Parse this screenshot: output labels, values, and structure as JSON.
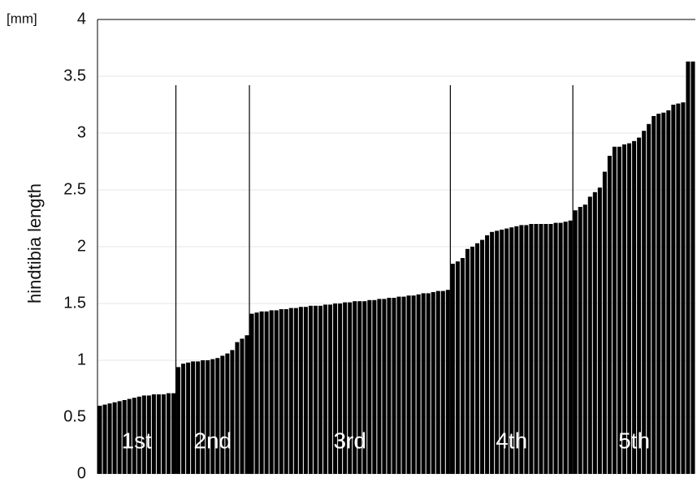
{
  "chart_data": {
    "type": "bar",
    "y_label": "hindtibia length",
    "y_unit": "[mm]",
    "ylim": [
      0,
      4
    ],
    "yticks": [
      0,
      0.5,
      1,
      1.5,
      2,
      2.5,
      3,
      3.5,
      4
    ],
    "grid": true,
    "series": [
      {
        "name": "1st",
        "color": "#000000",
        "values": [
          0.6,
          0.61,
          0.62,
          0.63,
          0.64,
          0.65,
          0.66,
          0.67,
          0.68,
          0.69,
          0.69,
          0.7,
          0.7,
          0.7,
          0.71,
          0.71
        ]
      },
      {
        "name": "2nd",
        "color": "#000000",
        "values": [
          0.94,
          0.97,
          0.98,
          0.99,
          0.99,
          1.0,
          1.0,
          1.01,
          1.02,
          1.04,
          1.06,
          1.09,
          1.16,
          1.19,
          1.22
        ]
      },
      {
        "name": "3rd",
        "color": "#000000",
        "values": [
          1.41,
          1.42,
          1.43,
          1.43,
          1.44,
          1.44,
          1.45,
          1.45,
          1.46,
          1.46,
          1.47,
          1.47,
          1.48,
          1.48,
          1.48,
          1.49,
          1.49,
          1.5,
          1.5,
          1.51,
          1.51,
          1.52,
          1.52,
          1.52,
          1.53,
          1.53,
          1.54,
          1.54,
          1.55,
          1.55,
          1.56,
          1.56,
          1.57,
          1.57,
          1.58,
          1.59,
          1.59,
          1.6,
          1.61,
          1.61,
          1.62
        ]
      },
      {
        "name": "4th",
        "color": "#000000",
        "values": [
          1.85,
          1.87,
          1.9,
          1.98,
          2.0,
          2.03,
          2.06,
          2.1,
          2.13,
          2.14,
          2.15,
          2.16,
          2.17,
          2.18,
          2.19,
          2.19,
          2.2,
          2.2,
          2.2,
          2.2,
          2.2,
          2.21,
          2.21,
          2.22,
          2.23
        ]
      },
      {
        "name": "5th",
        "color": "#000000",
        "values": [
          2.32,
          2.35,
          2.37,
          2.44,
          2.48,
          2.52,
          2.66,
          2.8,
          2.88,
          2.88,
          2.9,
          2.91,
          2.93,
          2.96,
          3.02,
          3.08,
          3.15,
          3.17,
          3.18,
          3.2,
          3.25,
          3.26,
          3.27,
          3.63,
          3.63
        ]
      }
    ]
  }
}
